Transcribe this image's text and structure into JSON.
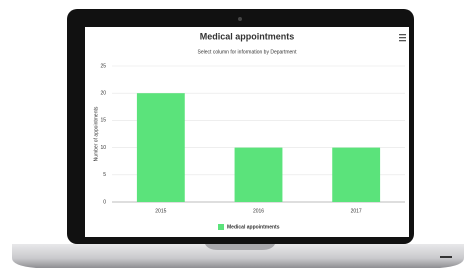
{
  "chart_data": {
    "type": "bar",
    "title": "Medical appointments",
    "subtitle": "Select column for information by Department",
    "y_label": "Number of appointments",
    "categories": [
      "2015",
      "2016",
      "2017"
    ],
    "series": [
      {
        "name": "Medical appointments",
        "color": "#5be37b",
        "values": [
          20,
          10,
          10
        ]
      }
    ],
    "ylim": [
      0,
      25
    ],
    "yticks": [
      0,
      5,
      10,
      15,
      20,
      25
    ],
    "grid": true
  }
}
